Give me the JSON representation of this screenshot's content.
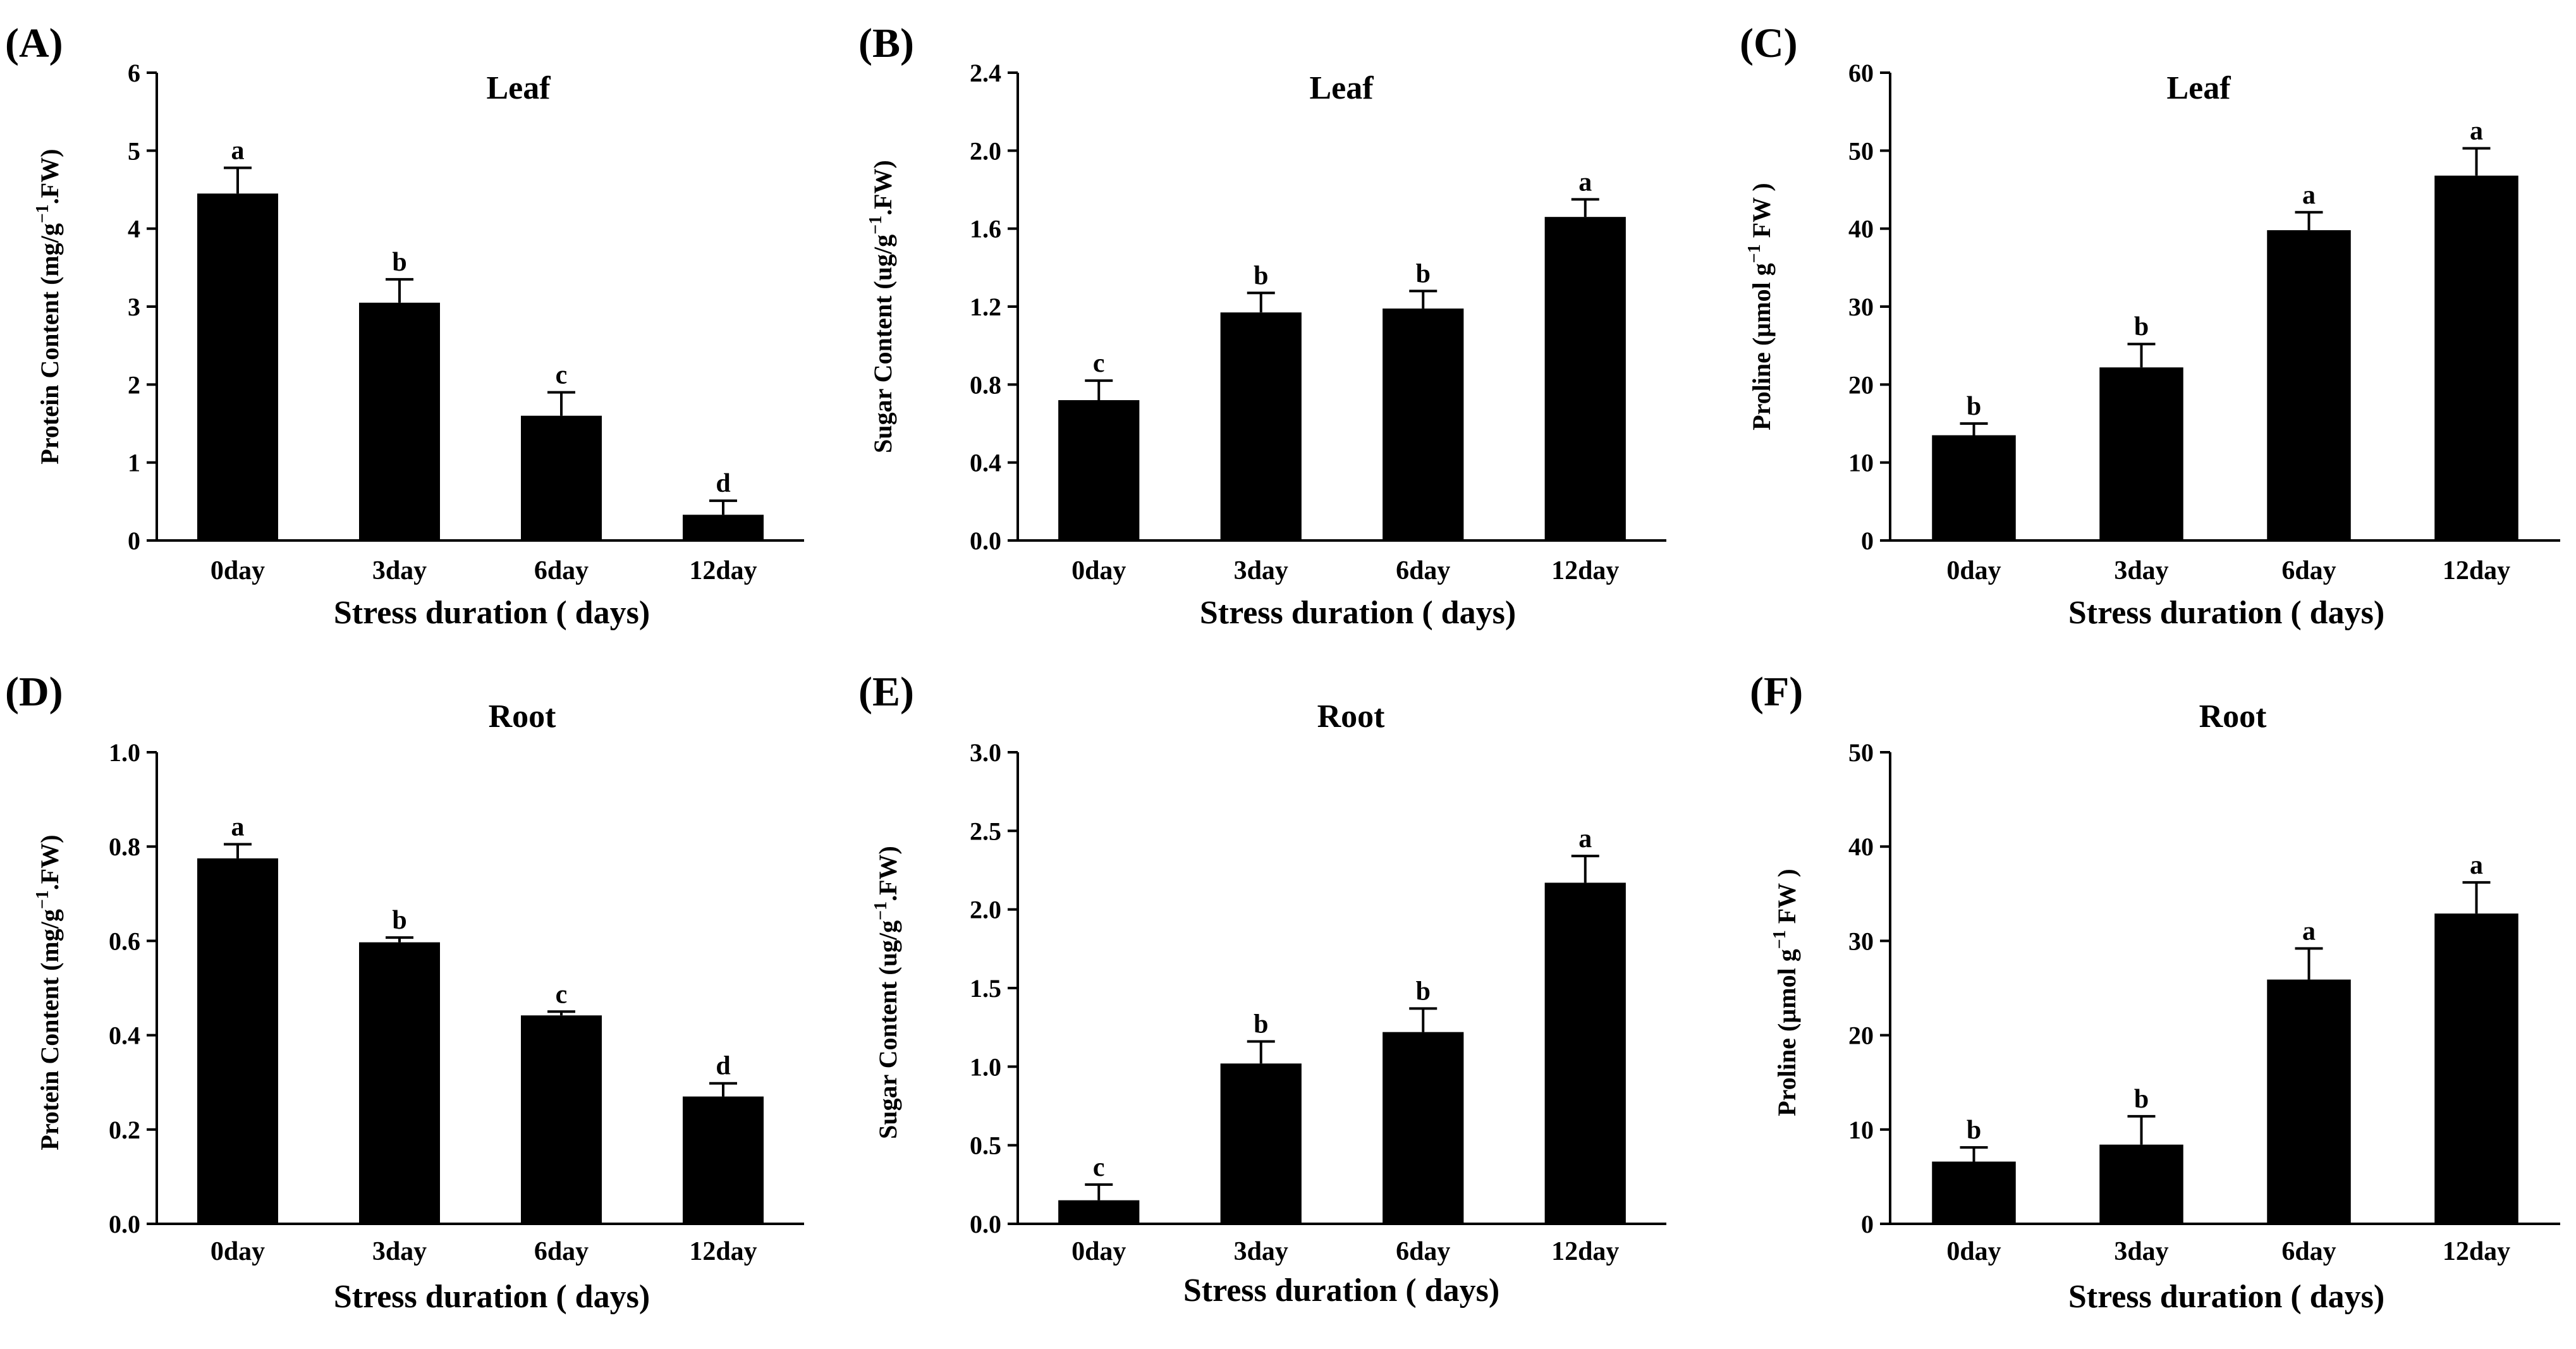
{
  "chart_data": [
    {
      "panel": "(A)",
      "type": "bar",
      "title": "Leaf",
      "ylabel": "Protein Content (mg/g",
      "ylabel_sup": "−1",
      "ylabel_end": ".FW)",
      "xlabel": "Stress duration ( days)",
      "categories": [
        "0day",
        "3day",
        "6day",
        "12day"
      ],
      "values": [
        4.45,
        3.05,
        1.6,
        0.33
      ],
      "errors": [
        0.33,
        0.3,
        0.3,
        0.18
      ],
      "letters": [
        "a",
        "b",
        "c",
        "d"
      ],
      "ylim": [
        0,
        6
      ],
      "yticks": [
        "0",
        "1",
        "2",
        "3",
        "4",
        "5",
        "6"
      ]
    },
    {
      "panel": "(B)",
      "type": "bar",
      "title": "Leaf",
      "ylabel": "Sugar Content (ug/g",
      "ylabel_sup": "−1",
      "ylabel_end": ".FW)",
      "xlabel": "Stress duration ( days)",
      "categories": [
        "0day",
        "3day",
        "6day",
        "12day"
      ],
      "values": [
        0.72,
        1.17,
        1.19,
        1.66
      ],
      "errors": [
        0.1,
        0.1,
        0.09,
        0.09
      ],
      "letters": [
        "c",
        "b",
        "b",
        "a"
      ],
      "ylim": [
        0,
        2.4
      ],
      "yticks": [
        "0.0",
        "0.4",
        "0.8",
        "1.2",
        "1.6",
        "2.0",
        "2.4"
      ]
    },
    {
      "panel": "(C)",
      "type": "bar",
      "title": "Leaf",
      "ylabel": "Proline (µmol g",
      "ylabel_sup": "−1",
      "ylabel_end": " FW )",
      "xlabel": "Stress duration ( days)",
      "categories": [
        "0day",
        "3day",
        "6day",
        "12day"
      ],
      "values": [
        13.5,
        22.2,
        39.8,
        46.8
      ],
      "errors": [
        1.5,
        3.0,
        2.3,
        3.5
      ],
      "letters": [
        "b",
        "b",
        "a",
        "a"
      ],
      "ylim": [
        0,
        60
      ],
      "yticks": [
        "0",
        "10",
        "20",
        "30",
        "40",
        "50",
        "60"
      ]
    },
    {
      "panel": "(D)",
      "type": "bar",
      "title": "Root",
      "ylabel": "Protein Content (mg/g",
      "ylabel_sup": "−1",
      "ylabel_end": ".FW)",
      "xlabel": "Stress duration ( days)",
      "categories": [
        "0day",
        "3day",
        "6day",
        "12day"
      ],
      "values": [
        0.775,
        0.597,
        0.442,
        0.27
      ],
      "errors": [
        0.03,
        0.01,
        0.008,
        0.028
      ],
      "letters": [
        "a",
        "b",
        "c",
        "d"
      ],
      "ylim": [
        0,
        1.0
      ],
      "yticks": [
        "0.0",
        "0.2",
        "0.4",
        "0.6",
        "0.8",
        "1.0"
      ]
    },
    {
      "panel": "(E)",
      "type": "bar",
      "title": "Root",
      "ylabel": "Sugar Content (ug/g",
      "ylabel_sup": "−1",
      "ylabel_end": ".FW)",
      "xlabel": "Stress duration ( days)",
      "categories": [
        "0day",
        "3day",
        "6day",
        "12day"
      ],
      "values": [
        0.15,
        1.02,
        1.22,
        2.17
      ],
      "errors": [
        0.1,
        0.14,
        0.15,
        0.17
      ],
      "letters": [
        "c",
        "b",
        "b",
        "a"
      ],
      "ylim": [
        0,
        3.0
      ],
      "yticks": [
        "0.0",
        "0.5",
        "1.0",
        "1.5",
        "2.0",
        "2.5",
        "3.0"
      ]
    },
    {
      "panel": "(F)",
      "type": "bar",
      "title": "Root",
      "ylabel": "Proline (µmol g",
      "ylabel_sup": "−1",
      "ylabel_end": " FW )",
      "xlabel": "Stress duration ( days)",
      "categories": [
        "0day",
        "3day",
        "6day",
        "12day"
      ],
      "values": [
        6.6,
        8.4,
        25.9,
        32.9
      ],
      "errors": [
        1.5,
        3.0,
        3.3,
        3.3
      ],
      "letters": [
        "b",
        "b",
        "a",
        "a"
      ],
      "ylim": [
        0,
        50
      ],
      "yticks": [
        "0",
        "10",
        "20",
        "30",
        "40",
        "50"
      ]
    }
  ]
}
